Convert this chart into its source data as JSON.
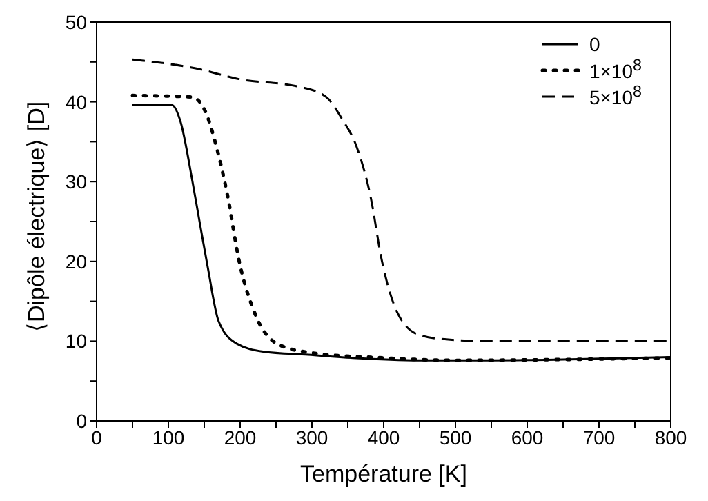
{
  "chart_data": {
    "type": "line",
    "xlabel": "Température [K]",
    "ylabel": "⟨Dipôle électrique⟩ [D]",
    "xlim": [
      0,
      800
    ],
    "ylim": [
      0,
      50
    ],
    "xticks": [
      0,
      {
        "value": 50,
        "label": null
      },
      100,
      {
        "value": 150,
        "label": null
      },
      200,
      {
        "value": 250,
        "label": null
      },
      300,
      {
        "value": 350,
        "label": null
      },
      400,
      {
        "value": 450,
        "label": null
      },
      500,
      {
        "value": 550,
        "label": null
      },
      600,
      {
        "value": 650,
        "label": null
      },
      700,
      {
        "value": 750,
        "label": null
      },
      800
    ],
    "yticks": [
      0,
      {
        "value": 5,
        "label": null
      },
      10,
      {
        "value": 15,
        "label": null
      },
      20,
      {
        "value": 25,
        "label": null
      },
      30,
      {
        "value": 35,
        "label": null
      },
      40,
      {
        "value": 45,
        "label": null
      },
      50
    ],
    "legend": "top right",
    "marker": "none",
    "series": [
      {
        "name": "0",
        "color": "#000000",
        "line_style": "solid",
        "x": [
          50,
          105,
          117,
          133,
          144,
          155,
          170,
          195,
          232,
          295,
          357,
          450,
          550,
          650,
          800
        ],
        "values": [
          39.6,
          39.6,
          37.5,
          30.3,
          24.7,
          19.2,
          12.5,
          9.7,
          8.7,
          8.3,
          7.9,
          7.6,
          7.6,
          7.7,
          8.0
        ]
      },
      {
        "name": "1×10$^{8}$",
        "color": "#000000",
        "line_style": "dotted",
        "x": [
          50,
          133,
          151,
          166,
          183,
          198,
          220,
          251,
          295,
          400,
          500,
          650,
          800
        ],
        "values": [
          40.8,
          40.6,
          38.9,
          34.7,
          28,
          20.3,
          13.6,
          9.7,
          8.6,
          7.9,
          7.6,
          7.7,
          7.9
        ]
      },
      {
        "name": "5×10$^{8}$",
        "color": "#000000",
        "line_style": "dashed",
        "x": [
          50,
          138,
          201,
          282,
          320,
          341,
          363,
          382,
          397,
          419,
          449,
          490,
          550,
          650,
          800
        ],
        "values": [
          45.3,
          44.2,
          42.8,
          41.9,
          40.6,
          38,
          34.2,
          28,
          20.3,
          13.6,
          10.8,
          10.2,
          10.0,
          10.0,
          10.0
        ]
      }
    ]
  }
}
